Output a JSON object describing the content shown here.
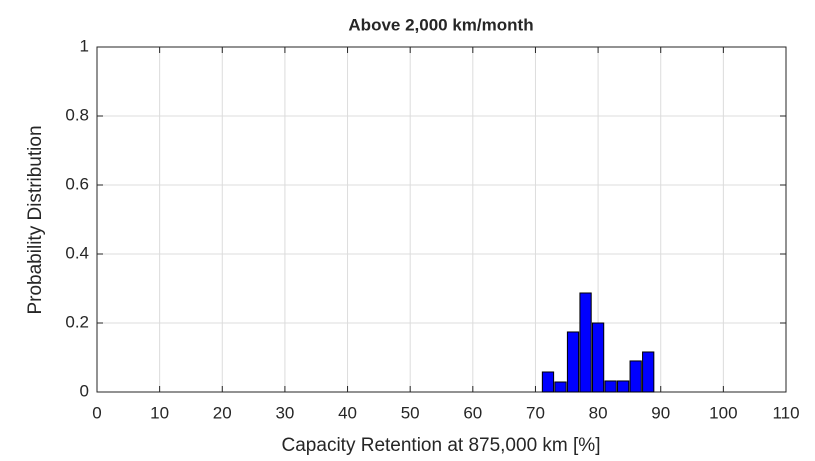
{
  "chart_data": {
    "type": "bar",
    "title": "Above 2,000 km/month",
    "x_label": "Capacity Retention at 875,000 km [%]",
    "y_label": "Probability Distribution",
    "x": [
      72,
      74,
      76,
      78,
      80,
      82,
      84,
      86,
      88
    ],
    "values": [
      0.058,
      0.029,
      0.174,
      0.287,
      0.2,
      0.032,
      0.032,
      0.09,
      0.116
    ],
    "color": "#0000ff",
    "edge_color": "#000000",
    "xlim": [
      0,
      110
    ],
    "xticks": [
      0,
      10,
      20,
      30,
      40,
      50,
      60,
      70,
      80,
      90,
      100,
      110
    ],
    "ylim": [
      0,
      1
    ],
    "yticks": [
      0,
      0.2,
      0.4,
      0.6,
      0.8,
      1
    ],
    "grid": true
  }
}
